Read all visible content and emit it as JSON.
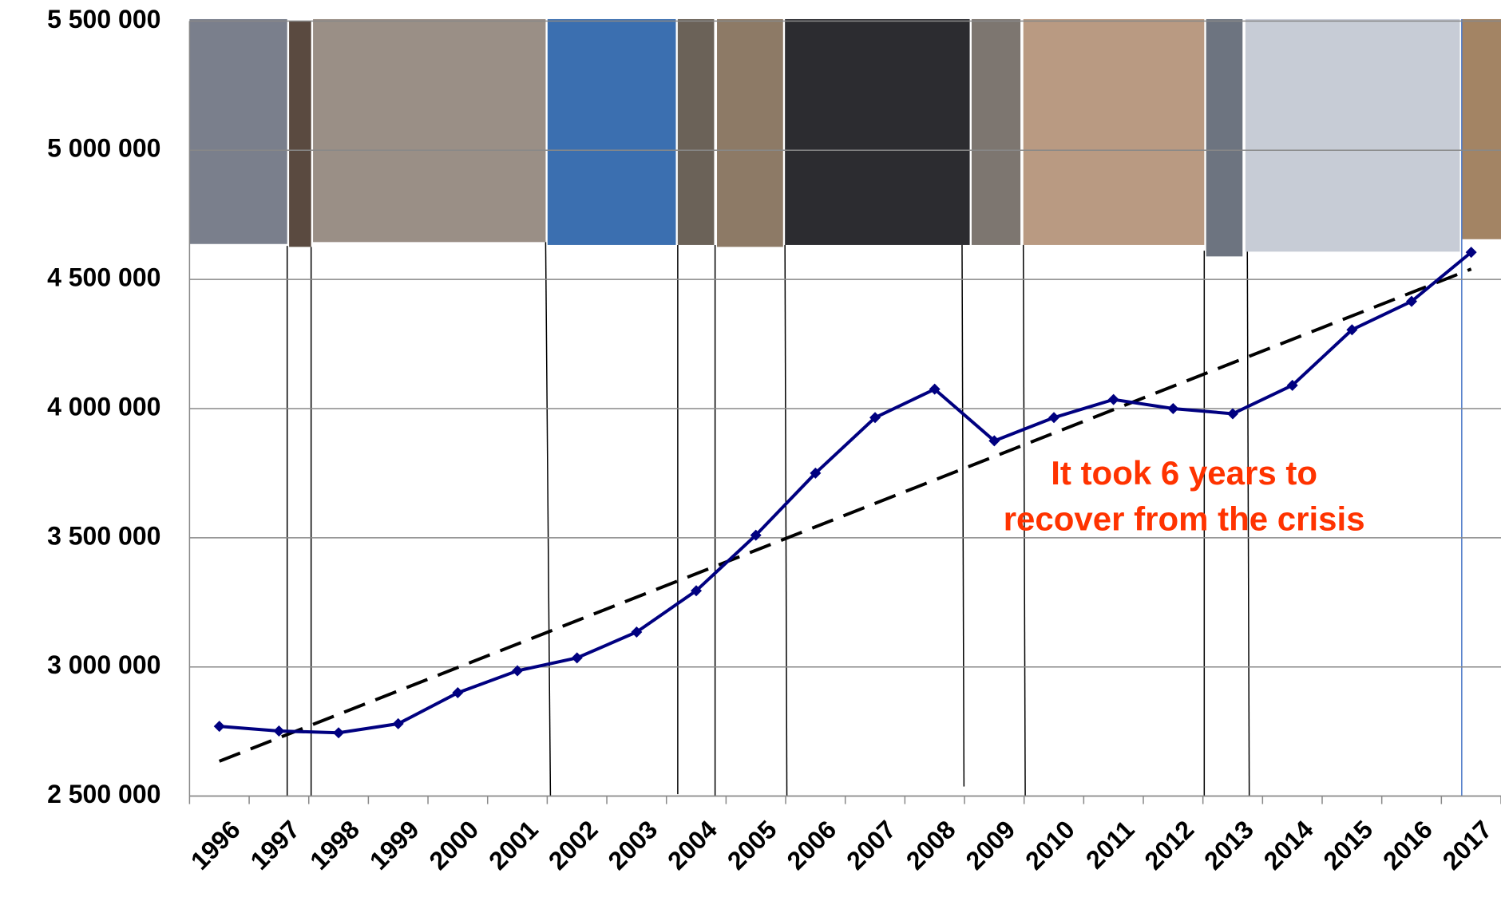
{
  "chart_data": {
    "type": "line",
    "categories": [
      "1996",
      "1997",
      "1998",
      "1999",
      "2000",
      "2001",
      "2002",
      "2003",
      "2004",
      "2005",
      "2006",
      "2007",
      "2008",
      "2009",
      "2010",
      "2011",
      "2012",
      "2013",
      "2014",
      "2015",
      "2016",
      "2017"
    ],
    "values": [
      2770000,
      2752000,
      2745000,
      2780000,
      2900000,
      2985000,
      3035000,
      3135000,
      3295000,
      3510000,
      3750000,
      3965000,
      4075000,
      3875000,
      3965000,
      4035000,
      4000000,
      3980000,
      4090000,
      4305000,
      4415000,
      4605000
    ],
    "color": "#000080",
    "trendline": [
      2635000,
      4540000
    ],
    "ylim": [
      2500000,
      5500000
    ],
    "yticks": [
      {
        "value": 2500000,
        "label": "2 500 000"
      },
      {
        "value": 3000000,
        "label": "3 000 000"
      },
      {
        "value": 3500000,
        "label": "3 500 000"
      },
      {
        "value": 4000000,
        "label": "4 000 000"
      },
      {
        "value": 4500000,
        "label": "4 500 000"
      },
      {
        "value": 5000000,
        "label": "5 000 000"
      },
      {
        "value": 5500000,
        "label": "5 500 000"
      }
    ],
    "grid": true,
    "annotation": [
      "It took 6 years to",
      "recover from the crisis"
    ],
    "annotation_color": "#ff3300"
  }
}
